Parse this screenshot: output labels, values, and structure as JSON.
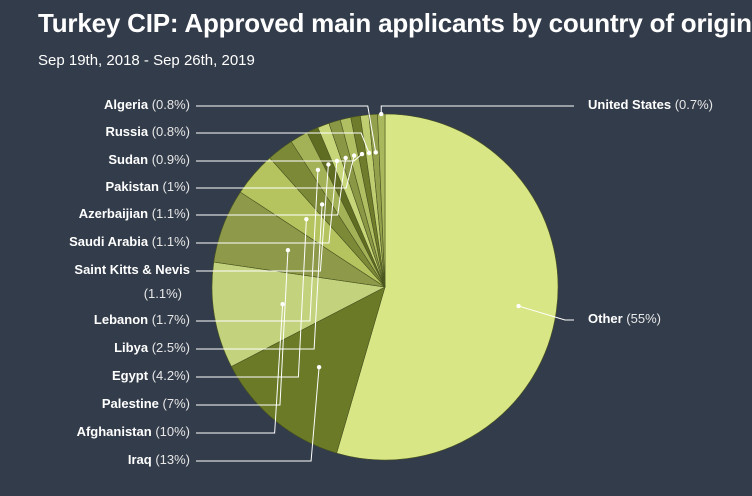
{
  "title": "Turkey CIP: Approved main applicants by country of origin",
  "subtitle": "Sep 19th, 2018 - Sep 26th, 2019",
  "chart_data": {
    "type": "pie",
    "title": "Turkey CIP: Approved main applicants by country of origin",
    "subtitle": "Sep 19th, 2018 - Sep 26th, 2019",
    "slices": [
      {
        "label": "Other",
        "value": 55,
        "display": "(55%)",
        "color": "#d9e685"
      },
      {
        "label": "Iraq",
        "value": 13,
        "display": "(13%)",
        "color": "#6b7a27"
      },
      {
        "label": "Afghanistan",
        "value": 10,
        "display": "(10%)",
        "color": "#c3d27d"
      },
      {
        "label": "Palestine",
        "value": 7,
        "display": "(7%)",
        "color": "#8e9a4a"
      },
      {
        "label": "Egypt",
        "value": 4.2,
        "display": "(4.2%)",
        "color": "#b5c45f"
      },
      {
        "label": "Libya",
        "value": 2.5,
        "display": "(2.5%)",
        "color": "#7c8a38"
      },
      {
        "label": "Lebanon",
        "value": 1.7,
        "display": "(1.7%)",
        "color": "#a4b257"
      },
      {
        "label": "Saint Kitts & Nevis",
        "value": 1.1,
        "display": "(1.1%)",
        "color": "#5f6d22"
      },
      {
        "label": "Saudi Arabia",
        "value": 1.1,
        "display": "(1.1%)",
        "color": "#c8d67a"
      },
      {
        "label": "Azerbaijian",
        "value": 1.1,
        "display": "(1.1%)",
        "color": "#8a9845"
      },
      {
        "label": "Pakistan",
        "value": 1,
        "display": "(1%)",
        "color": "#b0bf62"
      },
      {
        "label": "Sudan",
        "value": 0.9,
        "display": "(0.9%)",
        "color": "#6e7c2c"
      },
      {
        "label": "Russia",
        "value": 0.8,
        "display": "(0.8%)",
        "color": "#c0ce72"
      },
      {
        "label": "Algeria",
        "value": 0.8,
        "display": "(0.8%)",
        "color": "#93a14d"
      },
      {
        "label": "United States",
        "value": 0.7,
        "display": "(0.7%)",
        "color": "#a9b85c"
      }
    ]
  }
}
